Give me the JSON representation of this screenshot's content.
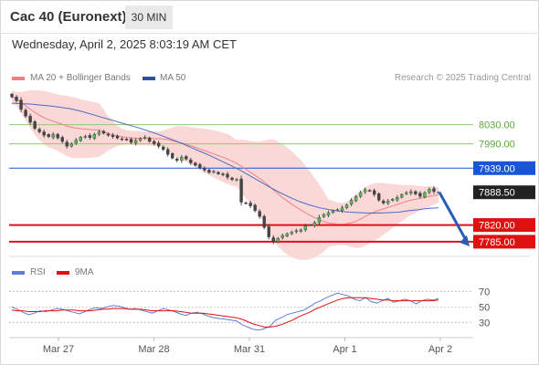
{
  "header": {
    "title": "Cac 40 (Euronext)",
    "timeframe": "30 MIN",
    "datetime": "Wednesday, April 2, 2025 8:03:19 AM CET"
  },
  "legend": {
    "ma20": "MA 20 + Bollinger Bands",
    "ma50": "MA 50",
    "credit": "Research © 2025 Trading Central",
    "rsi": "RSI",
    "ma9": "9MA"
  },
  "colors": {
    "bullish": "#55b955",
    "bearish": "#444444",
    "ma20": "#f08080",
    "bollinger_fill": "#fbd8d8",
    "ma50": "#4a6cc0",
    "pivot": "#1a55d6",
    "support": "#e01010",
    "resistance": "#8ccc6e",
    "last_price_bg": "#222222",
    "arrow": "#2a5cb5",
    "rsi": "#5b7fd6",
    "rsi_ma": "#e01010"
  },
  "chart_data": [
    {
      "type": "candlestick",
      "title": "Cac 40 (Euronext)",
      "timeframe": "30 MIN",
      "x_labels": [
        "Mar 27",
        "Mar 28",
        "Mar 31",
        "Apr 1",
        "Apr 2"
      ],
      "ylim": [
        7760,
        8100
      ],
      "grid": false,
      "price_levels": [
        {
          "label": "8030.00",
          "value": 8030.0,
          "kind": "resistance"
        },
        {
          "label": "7990.00",
          "value": 7990.0,
          "kind": "resistance"
        },
        {
          "label": "7939.00",
          "value": 7939.0,
          "kind": "pivot"
        },
        {
          "label": "7888.50",
          "value": 7888.5,
          "kind": "last"
        },
        {
          "label": "7820.00",
          "value": 7820.0,
          "kind": "support"
        },
        {
          "label": "7785.00",
          "value": 7785.0,
          "kind": "support"
        }
      ],
      "close_series": [
        8088,
        8080,
        8062,
        8048,
        8035,
        8022,
        8015,
        8008,
        8005,
        8010,
        8002,
        7995,
        7985,
        7990,
        7998,
        8004,
        8006,
        8003,
        8010,
        8015,
        8012,
        8008,
        8005,
        8002,
        8000,
        7998,
        7993,
        7997,
        8001,
        8004,
        7995,
        7990,
        7985,
        7978,
        7968,
        7960,
        7955,
        7962,
        7958,
        7950,
        7945,
        7940,
        7935,
        7930,
        7932,
        7927,
        7925,
        7920,
        7915,
        7915,
        7868,
        7866,
        7860,
        7850,
        7838,
        7815,
        7795,
        7785,
        7792,
        7798,
        7802,
        7805,
        7808,
        7810,
        7818,
        7820,
        7825,
        7836,
        7842,
        7846,
        7850,
        7852,
        7856,
        7862,
        7872,
        7880,
        7888,
        7894,
        7892,
        7884,
        7872,
        7866,
        7870,
        7874,
        7878,
        7884,
        7888,
        7890,
        7885,
        7880,
        7888,
        7895,
        7890,
        7888.5
      ],
      "ma50_series": [
        8075,
        8074,
        8073,
        8071,
        8069,
        8066,
        8063,
        8058,
        8052,
        8046,
        8040,
        8034,
        8028,
        8022,
        8015,
        8008,
        8000,
        7992,
        7983,
        7974,
        7965,
        7955,
        7945,
        7935,
        7923,
        7911,
        7899,
        7888,
        7878,
        7869,
        7862,
        7856,
        7852,
        7849,
        7847,
        7846,
        7845,
        7845,
        7846,
        7847,
        7850,
        7852,
        7855,
        7856
      ],
      "forecast": {
        "from": 7888.5,
        "to": 7785.0
      }
    },
    {
      "type": "line",
      "title": "",
      "series": [
        {
          "name": "RSI",
          "values": [
            50,
            47,
            43,
            40,
            42,
            45,
            44,
            46,
            48,
            47,
            45,
            43,
            41,
            44,
            47,
            49,
            48,
            50,
            52,
            51,
            49,
            47,
            48,
            46,
            44,
            42,
            45,
            48,
            46,
            44,
            41,
            39,
            42,
            43,
            41,
            38,
            36,
            35,
            34,
            33,
            32,
            27,
            24,
            21,
            20,
            22,
            25,
            33,
            36,
            40,
            42,
            44,
            46,
            50,
            55,
            58,
            62,
            65,
            68,
            66,
            64,
            60,
            58,
            62,
            57,
            55,
            58,
            61,
            56,
            58,
            60,
            58,
            54,
            58,
            60,
            59,
            61
          ]
        },
        {
          "name": "9MA",
          "values": [
            46,
            45,
            45,
            44,
            44,
            44,
            45,
            45,
            45,
            46,
            46,
            46,
            45,
            45,
            45,
            46,
            47,
            47,
            48,
            48,
            48,
            47,
            47,
            47,
            46,
            45,
            45,
            45,
            45,
            45,
            44,
            43,
            42,
            42,
            42,
            41,
            40,
            39,
            38,
            37,
            36,
            34,
            31,
            28,
            26,
            24,
            24,
            25,
            27,
            30,
            33,
            37,
            40,
            43,
            47,
            50,
            53,
            56,
            59,
            61,
            62,
            62,
            62,
            62,
            61,
            60,
            59,
            59,
            58,
            58,
            58,
            58,
            58,
            58,
            58,
            58,
            59
          ]
        }
      ],
      "y_ticks": [
        30,
        50,
        70
      ],
      "ylim": [
        15,
        80
      ],
      "reference_lines": [
        30,
        50,
        70
      ]
    }
  ]
}
